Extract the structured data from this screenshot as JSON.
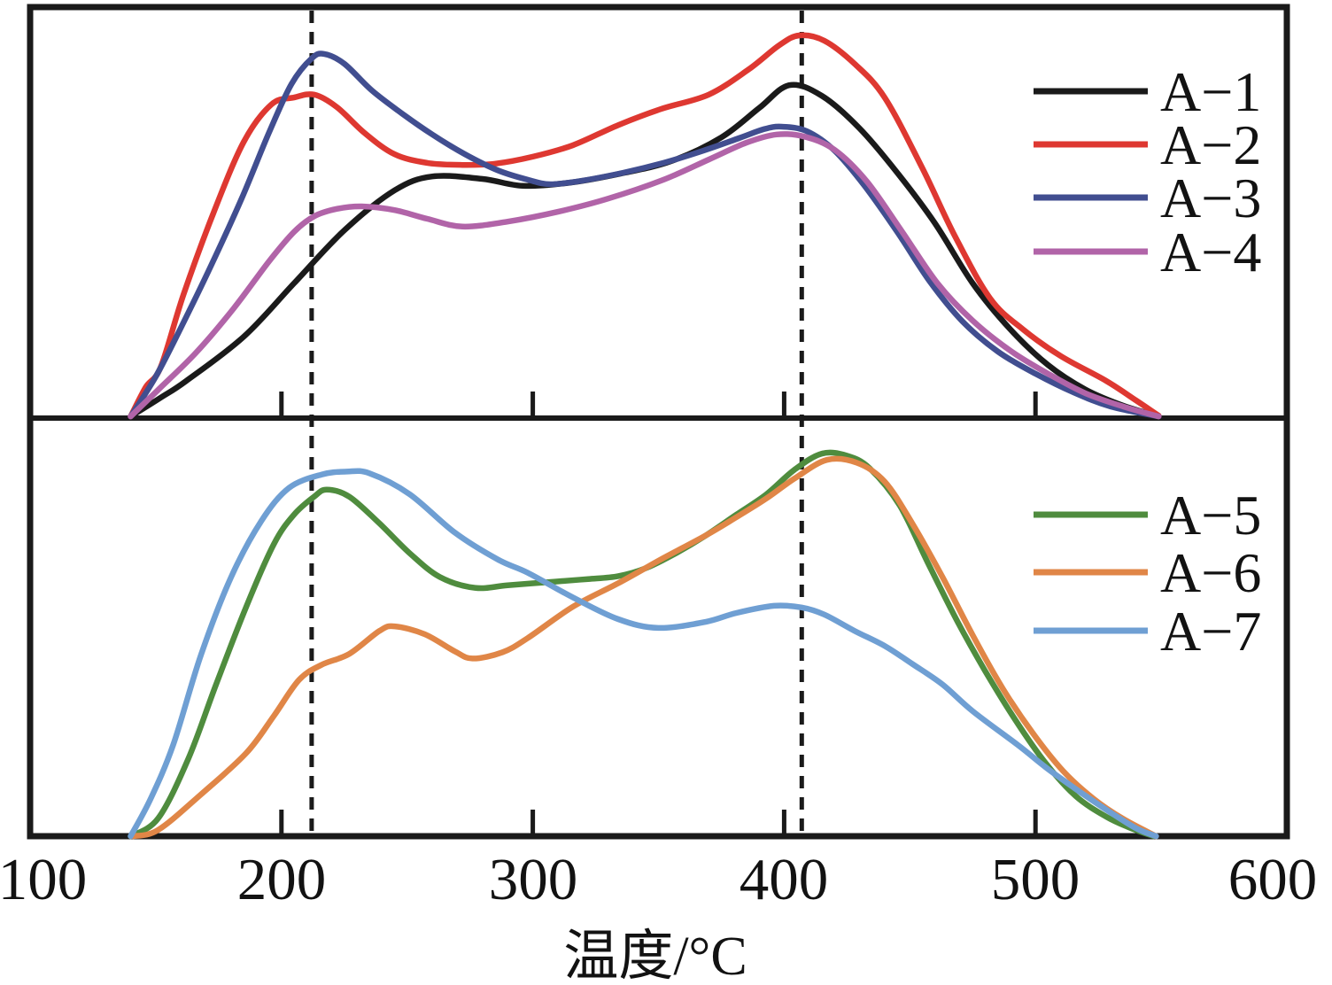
{
  "figure": {
    "title": "",
    "x_axis": {
      "label": "温度/°C",
      "tick_labels": [
        "100",
        "200",
        "300",
        "400",
        "500",
        "600"
      ]
    },
    "colors": {
      "background": "#ffffff",
      "frame": "#1a1a1a",
      "reference_line": "#1a1a1a",
      "text": "#121212"
    }
  },
  "chart_data": [
    {
      "type": "line",
      "panel": "top",
      "title": "",
      "xlabel": "温度/°C",
      "ylabel": "",
      "x_range": [
        100,
        600
      ],
      "x_ticks": [
        100,
        200,
        300,
        400,
        500,
        600
      ],
      "y_range": [
        0,
        1
      ],
      "grid": false,
      "legend_position": "right",
      "reference_lines_x": [
        212,
        407
      ],
      "series": [
        {
          "name": "A−1",
          "color": "#1a1a1a",
          "points": [
            [
              140,
              0.004
            ],
            [
              152,
              0.05
            ],
            [
              162,
              0.09
            ],
            [
              185,
              0.198
            ],
            [
              205,
              0.328
            ],
            [
              225,
              0.457
            ],
            [
              245,
              0.554
            ],
            [
              260,
              0.588
            ],
            [
              280,
              0.582
            ],
            [
              296,
              0.565
            ],
            [
              315,
              0.573
            ],
            [
              335,
              0.595
            ],
            [
              355,
              0.625
            ],
            [
              375,
              0.683
            ],
            [
              390,
              0.754
            ],
            [
              402,
              0.81
            ],
            [
              415,
              0.784
            ],
            [
              430,
              0.705
            ],
            [
              445,
              0.597
            ],
            [
              460,
              0.474
            ],
            [
              475,
              0.328
            ],
            [
              490,
              0.216
            ],
            [
              505,
              0.129
            ],
            [
              520,
              0.069
            ],
            [
              535,
              0.03
            ],
            [
              549,
              0.004
            ]
          ]
        },
        {
          "name": "A−2",
          "color": "#de3831",
          "points": [
            [
              140,
              0.004
            ],
            [
              146,
              0.075
            ],
            [
              152,
              0.125
            ],
            [
              161,
              0.3
            ],
            [
              173,
              0.5
            ],
            [
              185,
              0.672
            ],
            [
              196,
              0.763
            ],
            [
              205,
              0.78
            ],
            [
              213,
              0.787
            ],
            [
              222,
              0.757
            ],
            [
              233,
              0.694
            ],
            [
              245,
              0.642
            ],
            [
              258,
              0.621
            ],
            [
              272,
              0.616
            ],
            [
              285,
              0.619
            ],
            [
              300,
              0.636
            ],
            [
              316,
              0.664
            ],
            [
              334,
              0.713
            ],
            [
              351,
              0.752
            ],
            [
              370,
              0.787
            ],
            [
              386,
              0.849
            ],
            [
              398,
              0.907
            ],
            [
              406,
              0.931
            ],
            [
              416,
              0.918
            ],
            [
              428,
              0.862
            ],
            [
              440,
              0.78
            ],
            [
              455,
              0.608
            ],
            [
              468,
              0.442
            ],
            [
              482,
              0.291
            ],
            [
              495,
              0.216
            ],
            [
              510,
              0.151
            ],
            [
              528,
              0.091
            ],
            [
              540,
              0.043
            ],
            [
              549,
              0.006
            ]
          ]
        },
        {
          "name": "A−3",
          "color": "#414e90",
          "points": [
            [
              140,
              0.004
            ],
            [
              150,
              0.101
            ],
            [
              160,
              0.22
            ],
            [
              172,
              0.371
            ],
            [
              184,
              0.532
            ],
            [
              195,
              0.694
            ],
            [
              204,
              0.813
            ],
            [
              212,
              0.875
            ],
            [
              217,
              0.886
            ],
            [
              225,
              0.862
            ],
            [
              236,
              0.797
            ],
            [
              248,
              0.741
            ],
            [
              260,
              0.69
            ],
            [
              273,
              0.642
            ],
            [
              286,
              0.603
            ],
            [
              298,
              0.58
            ],
            [
              307,
              0.569
            ],
            [
              320,
              0.578
            ],
            [
              336,
              0.597
            ],
            [
              352,
              0.621
            ],
            [
              368,
              0.651
            ],
            [
              382,
              0.681
            ],
            [
              392,
              0.703
            ],
            [
              399,
              0.709
            ],
            [
              409,
              0.698
            ],
            [
              420,
              0.651
            ],
            [
              432,
              0.565
            ],
            [
              445,
              0.453
            ],
            [
              458,
              0.332
            ],
            [
              471,
              0.235
            ],
            [
              485,
              0.162
            ],
            [
              500,
              0.108
            ],
            [
              515,
              0.063
            ],
            [
              530,
              0.028
            ],
            [
              549,
              0.004
            ]
          ]
        },
        {
          "name": "A−4",
          "color": "#b164a8",
          "points": [
            [
              140,
              0.004
            ],
            [
              151,
              0.069
            ],
            [
              166,
              0.159
            ],
            [
              181,
              0.267
            ],
            [
              195,
              0.381
            ],
            [
              205,
              0.453
            ],
            [
              213,
              0.491
            ],
            [
              222,
              0.509
            ],
            [
              232,
              0.515
            ],
            [
              245,
              0.506
            ],
            [
              258,
              0.485
            ],
            [
              272,
              0.466
            ],
            [
              290,
              0.478
            ],
            [
              310,
              0.502
            ],
            [
              330,
              0.534
            ],
            [
              352,
              0.58
            ],
            [
              370,
              0.629
            ],
            [
              385,
              0.67
            ],
            [
              397,
              0.69
            ],
            [
              408,
              0.685
            ],
            [
              420,
              0.653
            ],
            [
              433,
              0.575
            ],
            [
              447,
              0.453
            ],
            [
              461,
              0.328
            ],
            [
              475,
              0.237
            ],
            [
              490,
              0.164
            ],
            [
              505,
              0.108
            ],
            [
              520,
              0.06
            ],
            [
              535,
              0.028
            ],
            [
              549,
              0.004
            ]
          ]
        }
      ]
    },
    {
      "type": "line",
      "panel": "bottom",
      "title": "",
      "xlabel": "温度/°C",
      "ylabel": "",
      "x_range": [
        100,
        600
      ],
      "x_ticks": [
        100,
        200,
        300,
        400,
        500,
        600
      ],
      "y_range": [
        0,
        1
      ],
      "grid": false,
      "legend_position": "right",
      "reference_lines_x": [
        212,
        407
      ],
      "series": [
        {
          "name": "A−5",
          "color": "#4f8c3e",
          "points": [
            [
              140,
              0.0
            ],
            [
              151,
              0.043
            ],
            [
              163,
              0.186
            ],
            [
              174,
              0.363
            ],
            [
              186,
              0.549
            ],
            [
              197,
              0.699
            ],
            [
              205,
              0.769
            ],
            [
              213,
              0.812
            ],
            [
              218,
              0.829
            ],
            [
              227,
              0.812
            ],
            [
              239,
              0.748
            ],
            [
              251,
              0.677
            ],
            [
              263,
              0.62
            ],
            [
              277,
              0.594
            ],
            [
              290,
              0.6
            ],
            [
              309,
              0.609
            ],
            [
              322,
              0.615
            ],
            [
              334,
              0.622
            ],
            [
              345,
              0.641
            ],
            [
              357,
              0.677
            ],
            [
              369,
              0.72
            ],
            [
              381,
              0.769
            ],
            [
              393,
              0.818
            ],
            [
              404,
              0.876
            ],
            [
              415,
              0.915
            ],
            [
              425,
              0.91
            ],
            [
              434,
              0.88
            ],
            [
              446,
              0.791
            ],
            [
              457,
              0.656
            ],
            [
              469,
              0.513
            ],
            [
              480,
              0.395
            ],
            [
              492,
              0.278
            ],
            [
              504,
              0.175
            ],
            [
              516,
              0.096
            ],
            [
              528,
              0.047
            ],
            [
              538,
              0.019
            ],
            [
              547,
              0.0
            ]
          ]
        },
        {
          "name": "A−6",
          "color": "#e08647",
          "points": [
            [
              141,
              0.0
            ],
            [
              151,
              0.015
            ],
            [
              168,
              0.1
            ],
            [
              186,
              0.199
            ],
            [
              197,
              0.288
            ],
            [
              207,
              0.374
            ],
            [
              216,
              0.41
            ],
            [
              227,
              0.436
            ],
            [
              239,
              0.491
            ],
            [
              245,
              0.502
            ],
            [
              257,
              0.483
            ],
            [
              269,
              0.442
            ],
            [
              276,
              0.425
            ],
            [
              288,
              0.44
            ],
            [
              298,
              0.474
            ],
            [
              316,
              0.549
            ],
            [
              334,
              0.605
            ],
            [
              351,
              0.662
            ],
            [
              369,
              0.72
            ],
            [
              381,
              0.763
            ],
            [
              393,
              0.808
            ],
            [
              404,
              0.855
            ],
            [
              417,
              0.9
            ],
            [
              429,
              0.893
            ],
            [
              440,
              0.848
            ],
            [
              451,
              0.748
            ],
            [
              463,
              0.62
            ],
            [
              475,
              0.481
            ],
            [
              487,
              0.353
            ],
            [
              499,
              0.246
            ],
            [
              511,
              0.156
            ],
            [
              523,
              0.09
            ],
            [
              535,
              0.041
            ],
            [
              548,
              0.0
            ]
          ]
        },
        {
          "name": "A−7",
          "color": "#6f9fd3",
          "points": [
            [
              140,
              0.0
            ],
            [
              148,
              0.09
            ],
            [
              157,
              0.22
            ],
            [
              168,
              0.434
            ],
            [
              180,
              0.62
            ],
            [
              192,
              0.754
            ],
            [
              203,
              0.833
            ],
            [
              216,
              0.865
            ],
            [
              226,
              0.872
            ],
            [
              235,
              0.868
            ],
            [
              251,
              0.818
            ],
            [
              269,
              0.726
            ],
            [
              286,
              0.662
            ],
            [
              298,
              0.63
            ],
            [
              316,
              0.571
            ],
            [
              334,
              0.519
            ],
            [
              350,
              0.498
            ],
            [
              369,
              0.513
            ],
            [
              381,
              0.534
            ],
            [
              396,
              0.551
            ],
            [
              407,
              0.547
            ],
            [
              416,
              0.53
            ],
            [
              428,
              0.491
            ],
            [
              440,
              0.455
            ],
            [
              451,
              0.412
            ],
            [
              463,
              0.363
            ],
            [
              475,
              0.299
            ],
            [
              493,
              0.218
            ],
            [
              504,
              0.165
            ],
            [
              516,
              0.113
            ],
            [
              528,
              0.064
            ],
            [
              540,
              0.019
            ],
            [
              548,
              0.0
            ]
          ]
        }
      ]
    }
  ]
}
